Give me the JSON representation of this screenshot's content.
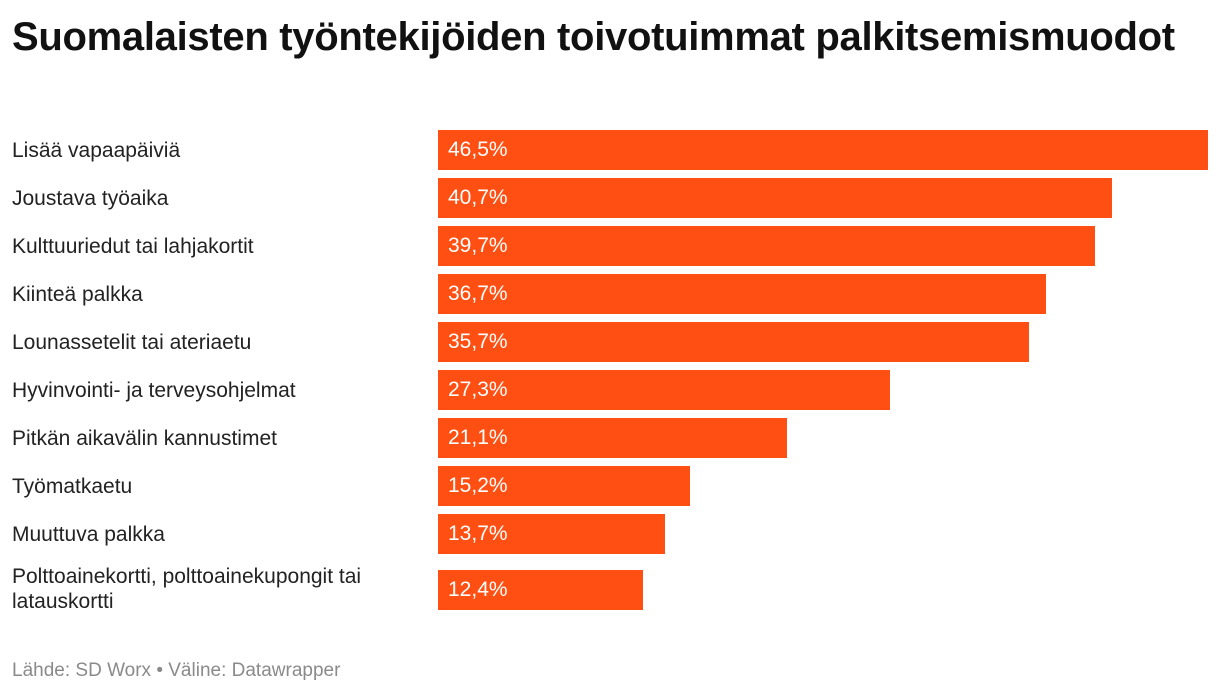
{
  "chart_data": {
    "type": "bar",
    "orientation": "horizontal",
    "title": "Suomalaisten työntekijöiden toivotuimmat palkitsemismuodot",
    "categories": [
      "Lisää vapaapäiviä",
      "Joustava työaika",
      "Kulttuuriedut tai lahjakortit",
      "Kiinteä palkka",
      "Lounassetelit tai ateriaetu",
      "Hyvinvointi- ja terveysohjelmat",
      "Pitkän aikavälin kannustimet",
      "Työmatkaetu",
      "Muuttuva palkka",
      "Polttoainekortti, polttoainekupongit tai latauskortti"
    ],
    "values": [
      46.5,
      40.7,
      39.7,
      36.7,
      35.7,
      27.3,
      21.1,
      15.2,
      13.7,
      12.4
    ],
    "value_labels": [
      "46,5%",
      "40,7%",
      "39,7%",
      "36,7%",
      "35,7%",
      "27,3%",
      "21,1%",
      "15,2%",
      "13,7%",
      "12,4%"
    ],
    "unit": "%",
    "xlim": [
      0,
      46.5
    ],
    "grid": false,
    "legend": "none",
    "bar_color": "#ff4f12"
  },
  "footer": {
    "source": "Lähde: SD Worx • Väline: Datawrapper"
  }
}
